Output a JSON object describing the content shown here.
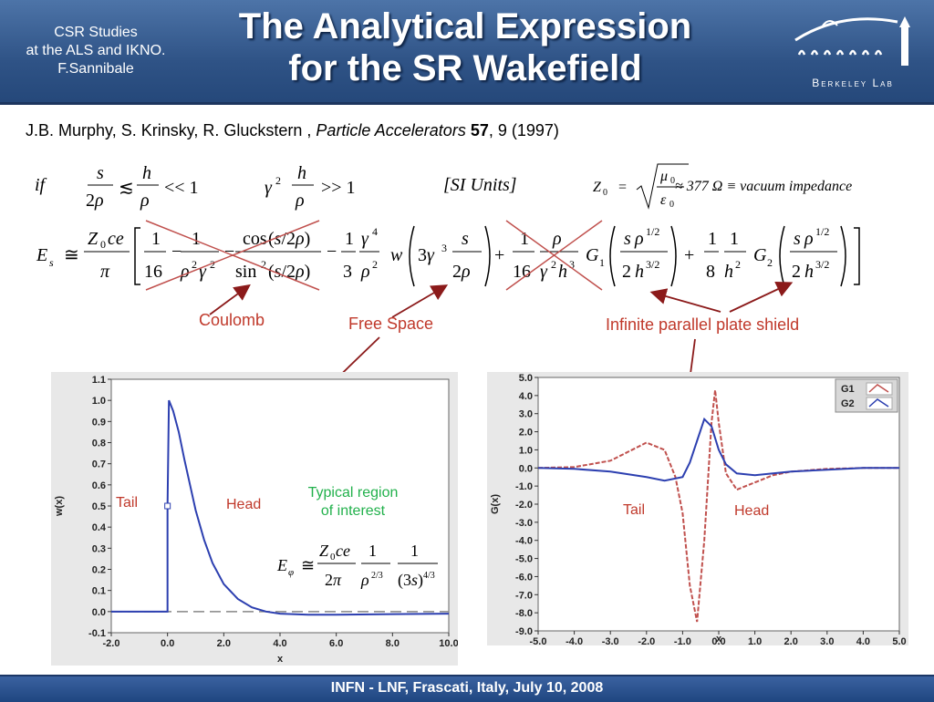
{
  "header": {
    "subtitle_lines": [
      "CSR Studies",
      "at the ALS and IKNO.",
      "F.Sannibale"
    ],
    "title_lines": [
      "The Analytical Expression",
      "for the SR Wakefield"
    ],
    "logo_text": "Berkeley Lab"
  },
  "citation": {
    "authors": "J.B. Murphy, S. Krinsky, R. Gluckstern , ",
    "journal": "Particle Accelerators",
    "volume": "57",
    "rest": ", 9 (1997)"
  },
  "equations": {
    "condition_if": "if",
    "units": "[SI Units]",
    "vacuum_impedance": "≈ 377 Ω ≡ vacuum impedance"
  },
  "annotations": {
    "coulomb": "Coulomb",
    "free_space": "Free Space",
    "plate_shield": "Infinite parallel plate shield",
    "tail_left": "Tail",
    "head_left": "Head",
    "typical_region": [
      "Typical region",
      "of interest"
    ],
    "tail_right": "Tail",
    "head_right": "Head"
  },
  "footer": {
    "text": "INFN - LNF, Frascati, Italy, July 10, 2008"
  },
  "chart_data": [
    {
      "type": "line",
      "xlabel": "x",
      "ylabel": "w(x)",
      "xlim": [
        -2.0,
        10.0
      ],
      "ylim": [
        -0.1,
        1.1
      ],
      "x_ticks": [
        "-2.0",
        "0.0",
        "2.0",
        "4.0",
        "6.0",
        "8.0",
        "10.0"
      ],
      "y_ticks": [
        "-0.1",
        "0.0",
        "0.1",
        "0.2",
        "0.3",
        "0.4",
        "0.5",
        "0.6",
        "0.7",
        "0.8",
        "0.9",
        "1.0",
        "1.1"
      ],
      "colors": {
        "line": "#2c3fb0",
        "zero": "#888888"
      },
      "series": [
        {
          "x": [
            -2.0,
            0.0,
            0.0,
            0.05,
            0.2,
            0.4,
            0.6,
            0.8,
            1.0,
            1.3,
            1.6,
            2.0,
            2.5,
            3.0,
            3.5,
            4.0,
            5.0,
            6.0,
            8.0,
            10.0
          ],
          "y": [
            0.0,
            0.0,
            0.5,
            1.0,
            0.95,
            0.85,
            0.72,
            0.6,
            0.48,
            0.34,
            0.23,
            0.13,
            0.06,
            0.02,
            0.0,
            -0.01,
            -0.015,
            -0.015,
            -0.012,
            -0.01
          ]
        }
      ]
    },
    {
      "type": "line",
      "xlabel": "x",
      "ylabel": "G(x)",
      "xlim": [
        -5.0,
        5.0
      ],
      "ylim": [
        -9.0,
        5.0
      ],
      "x_ticks": [
        "-5.0",
        "-4.0",
        "-3.0",
        "-2.0",
        "-1.0",
        "0.0",
        "1.0",
        "2.0",
        "3.0",
        "4.0",
        "5.0"
      ],
      "y_ticks": [
        "-9.0",
        "-8.0",
        "-7.0",
        "-6.0",
        "-5.0",
        "-4.0",
        "-3.0",
        "-2.0",
        "-1.0",
        "0.0",
        "1.0",
        "2.0",
        "3.0",
        "4.0",
        "5.0"
      ],
      "legend_position": "top-right",
      "series": [
        {
          "name": "G1",
          "color": "#c0504d",
          "x": [
            -5.0,
            -4.0,
            -3.0,
            -2.5,
            -2.0,
            -1.5,
            -1.2,
            -1.0,
            -0.8,
            -0.6,
            -0.4,
            -0.2,
            -0.1,
            0.0,
            0.2,
            0.5,
            1.0,
            1.5,
            2.0,
            3.0,
            4.0,
            5.0
          ],
          "y": [
            0.0,
            0.05,
            0.4,
            0.9,
            1.4,
            1.0,
            -0.5,
            -2.5,
            -6.5,
            -8.5,
            -4.0,
            2.5,
            4.3,
            2.5,
            -0.3,
            -1.2,
            -0.8,
            -0.4,
            -0.2,
            -0.05,
            0.0,
            0.0
          ]
        },
        {
          "name": "G2",
          "color": "#2c3fb0",
          "x": [
            -5.0,
            -4.0,
            -3.0,
            -2.0,
            -1.5,
            -1.0,
            -0.8,
            -0.6,
            -0.4,
            -0.2,
            0.0,
            0.2,
            0.5,
            1.0,
            1.5,
            2.0,
            3.0,
            4.0,
            5.0
          ],
          "y": [
            0.0,
            -0.05,
            -0.2,
            -0.5,
            -0.7,
            -0.5,
            0.3,
            1.5,
            2.7,
            2.3,
            1.0,
            0.2,
            -0.3,
            -0.4,
            -0.3,
            -0.2,
            -0.1,
            0.0,
            0.0
          ]
        }
      ]
    }
  ]
}
